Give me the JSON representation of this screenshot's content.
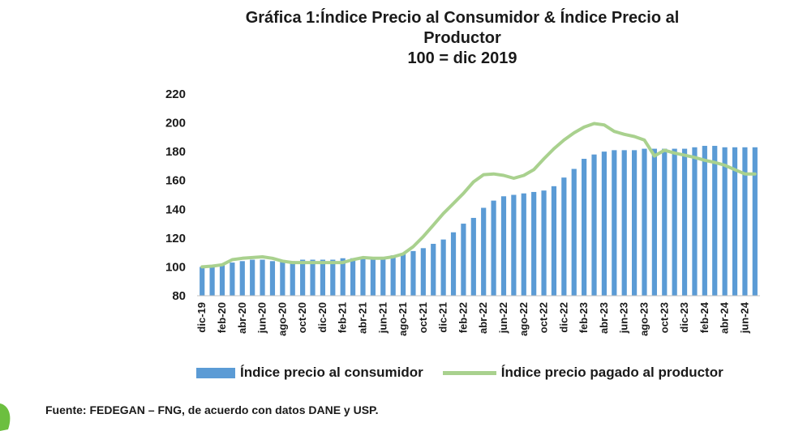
{
  "title_lines": [
    "Gráfica 1:Índice Precio al Consumidor & Índice Precio al",
    "Productor",
    "100 = dic 2019"
  ],
  "source": "Fuente: FEDEGAN – FNG, de acuerdo con datos DANE y USP.",
  "colors": {
    "bars": "#5b9bd5",
    "line": "#a9d18e",
    "text": "#1a1a1a"
  },
  "chart_data": {
    "type": "bar",
    "title": "Gráfica 1:Índice Precio al Consumidor & Índice Precio al Productor 100 = dic 2019",
    "xlabel": "",
    "ylabel": "",
    "ylim": [
      80,
      220
    ],
    "yticks": [
      80,
      100,
      120,
      140,
      160,
      180,
      200,
      220
    ],
    "grid": false,
    "legend": "bottom",
    "x": [
      "dic-19",
      "ene-20",
      "feb-20",
      "mar-20",
      "abr-20",
      "may-20",
      "jun-20",
      "jul-20",
      "ago-20",
      "sep-20",
      "oct-20",
      "nov-20",
      "dic-20",
      "ene-21",
      "feb-21",
      "mar-21",
      "abr-21",
      "may-21",
      "jun-21",
      "jul-21",
      "ago-21",
      "sep-21",
      "oct-21",
      "nov-21",
      "dic-21",
      "ene-22",
      "feb-22",
      "mar-22",
      "abr-22",
      "may-22",
      "jun-22",
      "jul-22",
      "ago-22",
      "sep-22",
      "oct-22",
      "nov-22",
      "dic-22",
      "ene-23",
      "feb-23",
      "mar-23",
      "abr-23",
      "may-23",
      "jun-23",
      "jul-23",
      "ago-23",
      "sep-23",
      "oct-23",
      "nov-23",
      "dic-23",
      "ene-24",
      "feb-24",
      "mar-24",
      "abr-24",
      "may-24",
      "jun-24",
      "jul-24"
    ],
    "xtick_labels": [
      "dic-19",
      "feb-20",
      "abr-20",
      "jun-20",
      "ago-20",
      "oct-20",
      "dic-20",
      "feb-21",
      "abr-21",
      "jun-21",
      "ago-21",
      "oct-21",
      "dic-21",
      "feb-22",
      "abr-22",
      "jun-22",
      "ago-22",
      "oct-22",
      "dic-22",
      "feb-23",
      "abr-23",
      "jun-23",
      "ago-23",
      "oct-23",
      "dic-23",
      "feb-24",
      "abr-24",
      "jun-24"
    ],
    "series": [
      {
        "name": "Índice precio al consumidor",
        "type": "bar",
        "values": [
          100,
          101,
          102,
          103,
          104,
          105,
          105,
          104,
          104,
          104,
          105,
          105,
          105,
          105,
          106,
          106,
          106,
          106,
          107,
          108,
          109,
          111,
          113,
          116,
          119,
          124,
          130,
          134,
          141,
          146,
          149,
          150,
          151,
          152,
          153,
          156,
          162,
          168,
          175,
          178,
          180,
          181,
          181,
          181,
          182,
          182,
          182,
          182,
          182,
          183,
          184,
          184,
          183,
          183,
          183,
          183
        ]
      },
      {
        "name": "Índice precio pagado al productor",
        "type": "line",
        "values": [
          100,
          100.5,
          101.5,
          105,
          106,
          106.5,
          107,
          106,
          104,
          103,
          103,
          103,
          103,
          103,
          103,
          105,
          106.5,
          106,
          106,
          107,
          109,
          114,
          121,
          129,
          137,
          144,
          151,
          159,
          164,
          164.5,
          163.5,
          161.5,
          163.5,
          167.5,
          175,
          182,
          188,
          193,
          197,
          199.5,
          198.5,
          194,
          192,
          190.5,
          188,
          177,
          181,
          179,
          177.5,
          176,
          174,
          172.5,
          170.5,
          167.5,
          164.5,
          164.5
        ]
      }
    ]
  }
}
